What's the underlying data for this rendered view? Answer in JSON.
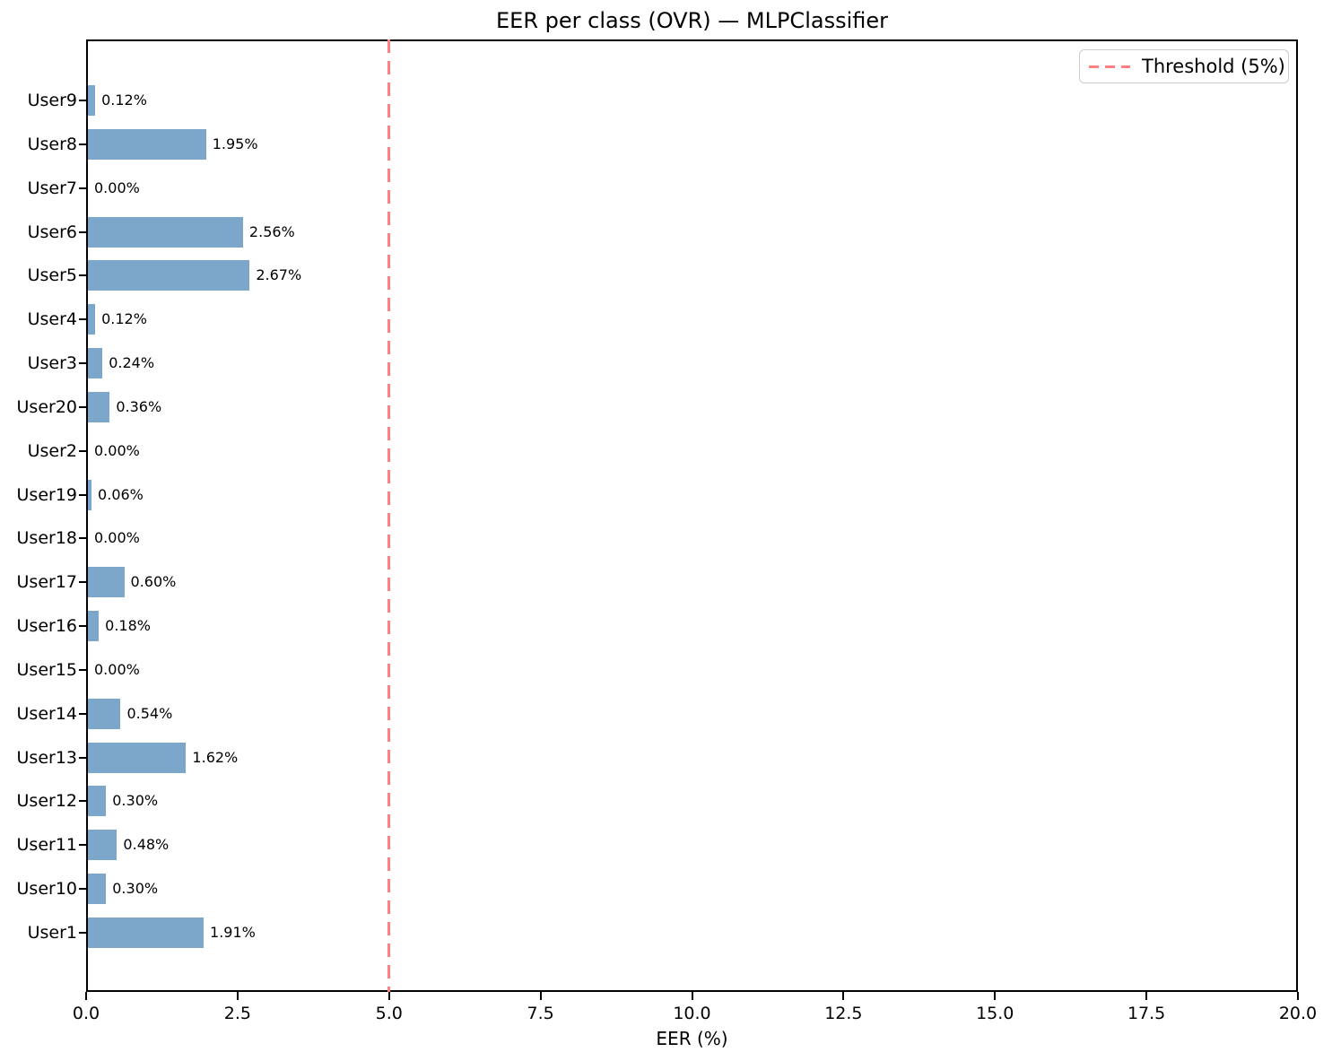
{
  "chart_data": {
    "type": "bar",
    "orientation": "horizontal",
    "title": "EER per class (OVR) — MLPClassifier",
    "xlabel": "EER (%)",
    "ylabel": "",
    "categories": [
      "User9",
      "User8",
      "User7",
      "User6",
      "User5",
      "User4",
      "User3",
      "User20",
      "User2",
      "User19",
      "User18",
      "User17",
      "User16",
      "User15",
      "User14",
      "User13",
      "User12",
      "User11",
      "User10",
      "User1"
    ],
    "values": [
      0.12,
      1.95,
      0.0,
      2.56,
      2.67,
      0.12,
      0.24,
      0.36,
      0.0,
      0.06,
      0.0,
      0.6,
      0.18,
      0.0,
      0.54,
      1.62,
      0.3,
      0.48,
      0.3,
      1.91
    ],
    "value_labels": [
      "0.12%",
      "1.95%",
      "0.00%",
      "2.56%",
      "2.67%",
      "0.12%",
      "0.24%",
      "0.36%",
      "0.00%",
      "0.06%",
      "0.00%",
      "0.60%",
      "0.18%",
      "0.00%",
      "0.54%",
      "1.62%",
      "0.30%",
      "0.48%",
      "0.30%",
      "1.91%"
    ],
    "xlim": [
      0,
      20
    ],
    "xticks": [
      0,
      2.5,
      5,
      7.5,
      10,
      12.5,
      15,
      17.5,
      20
    ],
    "xtick_labels": [
      "0.0",
      "2.5",
      "5.0",
      "7.5",
      "10.0",
      "12.5",
      "15.0",
      "17.5",
      "20.0"
    ],
    "grid": false,
    "threshold": {
      "value": 5,
      "label": "Threshold (5%)"
    },
    "legend_position": "upper right",
    "colors": {
      "bar": "#7da7ca",
      "threshold": "#ff8080",
      "axis": "#000000",
      "legend_border": "#cccccc"
    }
  }
}
